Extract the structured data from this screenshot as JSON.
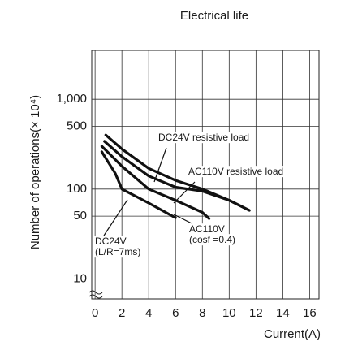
{
  "chart_data": {
    "type": "line",
    "title": "Electrical life",
    "xlabel": "Current(A)",
    "ylabel": "Number of operations(× 10⁴)",
    "log_y": true,
    "grid": true,
    "xlim": [
      -0.25,
      16.7
    ],
    "xticks": [
      0,
      2,
      4,
      6,
      8,
      10,
      12,
      14,
      16
    ],
    "ylim": [
      6,
      3500
    ],
    "yticks": [
      10,
      50,
      100,
      500,
      {
        "value": 1000,
        "label": "1,000"
      }
    ],
    "series": [
      {
        "name": "DC24V resistive load",
        "color": "#111111",
        "x": [
          0.8,
          2,
          4,
          6,
          8,
          10,
          11.5
        ],
        "values": [
          400,
          280,
          170,
          125,
          100,
          75,
          58
        ]
      },
      {
        "name": "AC110V resistive load",
        "color": "#111111",
        "x": [
          0.7,
          2,
          4,
          6,
          8,
          10,
          11.5
        ],
        "values": [
          340,
          230,
          140,
          105,
          95,
          75,
          58
        ]
      },
      {
        "name": "AC110V (cosf =0.4)",
        "color": "#111111",
        "x": [
          0.5,
          2,
          4,
          6,
          8,
          8.5
        ],
        "values": [
          300,
          180,
          100,
          75,
          55,
          47
        ]
      },
      {
        "name": "DC24V (L/R=7ms)",
        "color": "#111111",
        "x": [
          0.5,
          1.5,
          2,
          4,
          6
        ],
        "values": [
          260,
          150,
          100,
          70,
          48
        ]
      }
    ],
    "annotations": [
      [
        "DC24V resistive load"
      ],
      [
        "AC110V resistive load"
      ],
      [
        "DC24V",
        "(L/R=7ms)"
      ],
      [
        "AC110V",
        "(cosf =0.4)"
      ]
    ]
  }
}
